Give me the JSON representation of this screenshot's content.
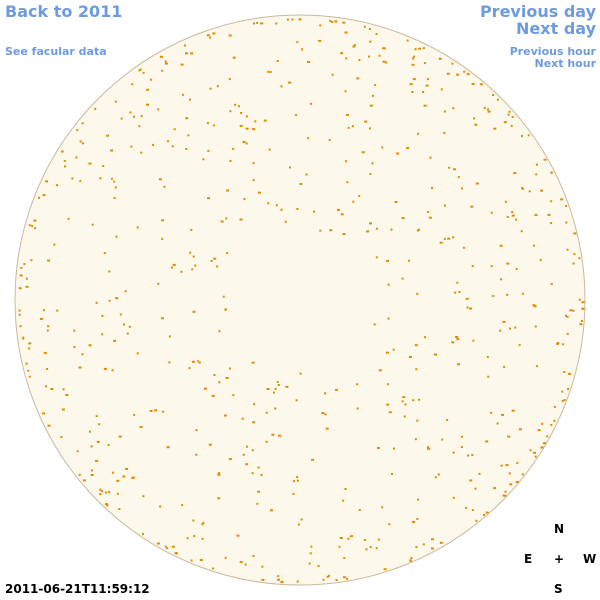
{
  "header": {
    "back_link": "Back to 2011",
    "data_link": "See facular data",
    "previous_day": "Previous day",
    "next_day": "Next day",
    "previous_hour": "Previous hour",
    "next_hour": "Next hour"
  },
  "timestamp": "2011-06-21T11:59:12",
  "compass": {
    "north": "N",
    "east": "E",
    "center": "+",
    "west": "W",
    "south": "S"
  }
}
